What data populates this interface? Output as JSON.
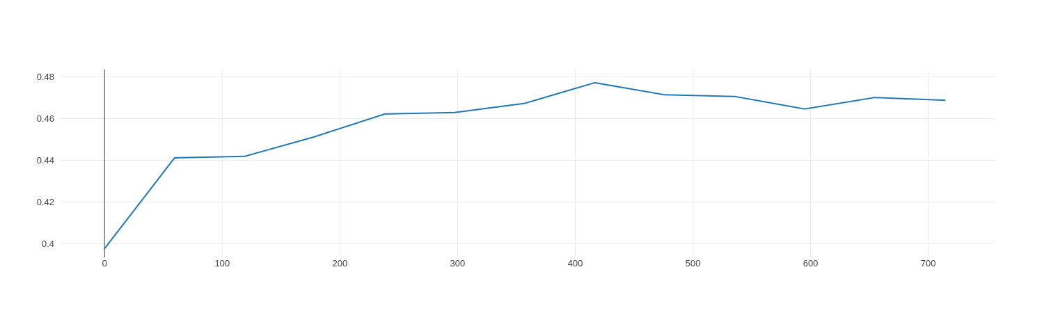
{
  "chart_data": {
    "type": "line",
    "title": "",
    "xlabel": "",
    "ylabel": "",
    "xlim": [
      -38,
      757
    ],
    "ylim": [
      0.3935,
      0.4835
    ],
    "x_ticks": [
      0,
      100,
      200,
      300,
      400,
      500,
      600,
      700
    ],
    "y_ticks": [
      0.4,
      0.42,
      0.44,
      0.46,
      0.48
    ],
    "x_tick_labels": [
      "0",
      "100",
      "200",
      "300",
      "400",
      "500",
      "600",
      "700"
    ],
    "y_tick_labels": [
      "0.4",
      "0.42",
      "0.44",
      "0.46",
      "0.48"
    ],
    "grid": true,
    "legend": "none",
    "series": [
      {
        "color": "#1f77b4",
        "x": [
          0,
          59.5,
          119,
          178.5,
          238,
          297.5,
          357,
          416.5,
          476,
          535.5,
          595,
          654.5,
          714
        ],
        "y": [
          0.3977,
          0.4412,
          0.4419,
          0.4513,
          0.4622,
          0.4629,
          0.4673,
          0.4772,
          0.4714,
          0.4706,
          0.4646,
          0.4701,
          0.4688
        ]
      }
    ]
  }
}
